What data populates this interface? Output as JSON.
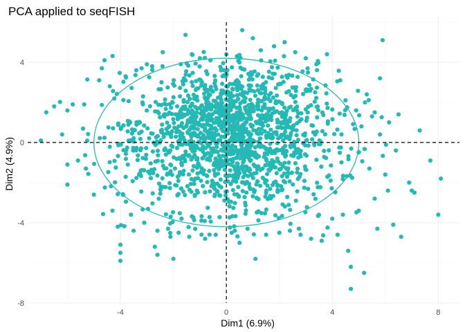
{
  "chart_data": {
    "type": "scatter",
    "title": "PCA applied to seqFISH",
    "xlabel": "Dim1 (6.9%)",
    "ylabel": "Dim2 (4.9%)",
    "xlim": [
      -7.5,
      8.8
    ],
    "ylim": [
      -8.0,
      6.0
    ],
    "x_ticks": [
      -4,
      0,
      4,
      8
    ],
    "x_tick_labels": [
      "-4",
      "0",
      "4",
      "8"
    ],
    "y_ticks": [
      -8,
      -4,
      0,
      4
    ],
    "y_tick_labels": [
      "-8",
      "-4",
      "0",
      "4"
    ],
    "grid": true,
    "reference_lines": {
      "x": 0,
      "y": 0,
      "style": "dashed"
    },
    "point_color": "#26b8b5",
    "ellipse": {
      "center": [
        0,
        0
      ],
      "radius_x": 5.0,
      "radius_y": 4.2,
      "color": "#26b8b5"
    },
    "highlighted_points": [
      [
        -7.0,
        0.1
      ],
      [
        -6.8,
        1.5
      ],
      [
        -6.5,
        1.8
      ],
      [
        -6.2,
        0.4
      ],
      [
        -6.0,
        -1.1
      ],
      [
        -6.0,
        -2.1
      ],
      [
        -5.8,
        1.9
      ],
      [
        -5.6,
        -0.9
      ],
      [
        -5.3,
        -1.3
      ],
      [
        -5.0,
        -2.6
      ],
      [
        -4.8,
        3.1
      ],
      [
        -4.7,
        3.7
      ],
      [
        -4.6,
        4.1
      ],
      [
        -4.4,
        2.8
      ],
      [
        -4.3,
        -3.4
      ],
      [
        -4.1,
        -4.2
      ],
      [
        -4.0,
        -5.1
      ],
      [
        -4.0,
        -5.9
      ],
      [
        -4.0,
        -5.5
      ],
      [
        -3.8,
        3.3
      ],
      [
        -3.6,
        -3.6
      ],
      [
        -3.5,
        -4.4
      ],
      [
        -3.4,
        3.6
      ],
      [
        -3.2,
        3.7
      ],
      [
        -3.1,
        -4.0
      ],
      [
        -3.0,
        3.9
      ],
      [
        -2.8,
        3.8
      ],
      [
        -2.7,
        -5.2
      ],
      [
        -2.6,
        -4.4
      ],
      [
        -2.6,
        -5.6
      ],
      [
        -2.4,
        4.5
      ],
      [
        -2.2,
        -4.3
      ],
      [
        -2.0,
        -5.8
      ],
      [
        -1.8,
        -4.5
      ],
      [
        -1.6,
        3.2
      ],
      [
        -1.4,
        -4.7
      ],
      [
        -1.3,
        4.4
      ],
      [
        -1.0,
        4.2
      ],
      [
        -0.8,
        -4.8
      ],
      [
        -0.6,
        4.1
      ],
      [
        -0.4,
        -4.6
      ],
      [
        -0.2,
        3.6
      ],
      [
        0.0,
        4.4
      ],
      [
        0.2,
        -4.5
      ],
      [
        0.4,
        4.3
      ],
      [
        0.5,
        -5.0
      ],
      [
        0.6,
        5.6
      ],
      [
        0.8,
        -4.3
      ],
      [
        1.0,
        5.2
      ],
      [
        1.1,
        -5.8
      ],
      [
        1.3,
        4.6
      ],
      [
        1.5,
        -4.6
      ],
      [
        1.8,
        4.8
      ],
      [
        2.0,
        -4.5
      ],
      [
        2.2,
        5.0
      ],
      [
        2.4,
        -4.4
      ],
      [
        2.6,
        4.5
      ],
      [
        2.8,
        -4.6
      ],
      [
        3.0,
        4.2
      ],
      [
        3.2,
        -4.8
      ],
      [
        3.4,
        3.9
      ],
      [
        3.6,
        -4.9
      ],
      [
        3.8,
        4.4
      ],
      [
        4.0,
        -3.8
      ],
      [
        4.2,
        -4.6
      ],
      [
        4.3,
        3.1
      ],
      [
        4.4,
        -3.6
      ],
      [
        4.5,
        2.1
      ],
      [
        4.6,
        -5.4
      ],
      [
        4.7,
        -6.2
      ],
      [
        4.7,
        -7.3
      ],
      [
        4.9,
        1.6
      ],
      [
        5.0,
        -3.4
      ],
      [
        5.1,
        0.8
      ],
      [
        5.2,
        -6.5
      ],
      [
        5.3,
        2.4
      ],
      [
        5.4,
        -1.3
      ],
      [
        5.5,
        1.3
      ],
      [
        5.6,
        1.5
      ],
      [
        5.6,
        -2.8
      ],
      [
        5.7,
        -4.3
      ],
      [
        5.8,
        3.2
      ],
      [
        5.8,
        0.4
      ],
      [
        5.9,
        5.1
      ],
      [
        6.0,
        -1.6
      ],
      [
        6.1,
        -2.4
      ],
      [
        6.3,
        -4.1
      ],
      [
        6.4,
        -0.4
      ],
      [
        6.5,
        1.4
      ],
      [
        6.6,
        -4.7
      ],
      [
        6.9,
        -2.0
      ],
      [
        7.0,
        -2.4
      ],
      [
        7.1,
        -2.5
      ],
      [
        7.3,
        0.6
      ],
      [
        7.7,
        -0.9
      ],
      [
        8.0,
        -3.6
      ],
      [
        8.1,
        -1.8
      ]
    ]
  }
}
